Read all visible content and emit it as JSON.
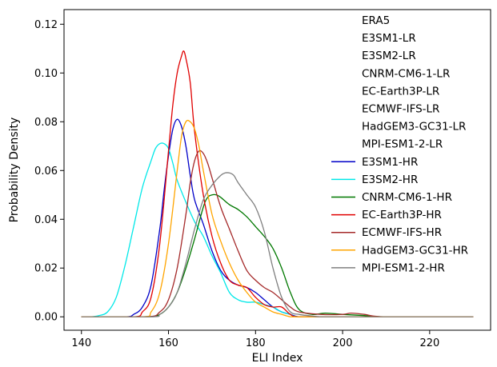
{
  "chart_data": {
    "type": "line",
    "title": "",
    "xlabel": "ELI Index",
    "ylabel": "Probability Density",
    "xlim": [
      136,
      234
    ],
    "ylim": [
      -0.0055,
      0.126
    ],
    "xticks": [
      140,
      160,
      180,
      200,
      220
    ],
    "yticks": [
      0.0,
      0.02,
      0.04,
      0.06,
      0.08,
      0.1,
      0.12
    ],
    "ytick_labels": [
      "0.00",
      "0.02",
      "0.04",
      "0.06",
      "0.08",
      "0.10",
      "0.12"
    ],
    "grid": false,
    "legend_position": "upper right",
    "series": [
      {
        "name": "ERA5",
        "color": null,
        "x": [],
        "y": []
      },
      {
        "name": "E3SM1-LR",
        "color": null,
        "x": [],
        "y": []
      },
      {
        "name": "E3SM2-LR",
        "color": null,
        "x": [],
        "y": []
      },
      {
        "name": "CNRM-CM6-1-LR",
        "color": null,
        "x": [],
        "y": []
      },
      {
        "name": "EC-Earth3P-LR",
        "color": null,
        "x": [],
        "y": []
      },
      {
        "name": "ECMWF-IFS-LR",
        "color": null,
        "x": [],
        "y": []
      },
      {
        "name": "HadGEM3-GC31-LR",
        "color": null,
        "x": [],
        "y": []
      },
      {
        "name": "MPI-ESM1-2-LR",
        "color": null,
        "x": [],
        "y": []
      },
      {
        "name": "E3SM1-HR",
        "color": "#0000c8",
        "x": [
          140,
          150,
          152,
          154,
          156,
          158,
          159,
          160,
          161,
          162,
          163,
          164,
          165,
          166,
          168,
          170,
          172,
          174,
          176,
          178,
          180,
          182,
          184,
          186,
          188,
          190,
          195,
          200,
          210,
          220,
          230
        ],
        "y": [
          0,
          0,
          0.001,
          0.004,
          0.013,
          0.036,
          0.052,
          0.066,
          0.077,
          0.081,
          0.078,
          0.07,
          0.058,
          0.048,
          0.038,
          0.027,
          0.019,
          0.015,
          0.013,
          0.012,
          0.01,
          0.007,
          0.004,
          0.002,
          0.001,
          0,
          0,
          0,
          0,
          0,
          0
        ]
      },
      {
        "name": "E3SM2-HR",
        "color": "#00e8e8",
        "x": [
          140,
          142,
          144,
          146,
          148,
          150,
          152,
          154,
          156,
          157,
          158,
          159,
          160,
          161,
          162,
          164,
          166,
          168,
          170,
          172,
          174,
          176,
          178,
          180,
          182,
          184,
          186,
          188,
          190,
          200,
          210,
          220,
          230
        ],
        "y": [
          0,
          0,
          0.0005,
          0.002,
          0.008,
          0.021,
          0.037,
          0.053,
          0.064,
          0.069,
          0.071,
          0.071,
          0.069,
          0.063,
          0.056,
          0.047,
          0.039,
          0.033,
          0.025,
          0.018,
          0.01,
          0.007,
          0.006,
          0.006,
          0.005,
          0.004,
          0.002,
          0.001,
          0,
          0,
          0,
          0,
          0
        ]
      },
      {
        "name": "CNRM-CM6-1-HR",
        "color": "#007800",
        "x": [
          140,
          155,
          158,
          160,
          162,
          164,
          166,
          168,
          169,
          170,
          171,
          172,
          174,
          176,
          178,
          180,
          182,
          184,
          186,
          188,
          190,
          193,
          196,
          200,
          205,
          210,
          230
        ],
        "y": [
          0,
          0,
          0.001,
          0.004,
          0.01,
          0.02,
          0.032,
          0.045,
          0.049,
          0.05,
          0.05,
          0.049,
          0.046,
          0.044,
          0.041,
          0.037,
          0.033,
          0.028,
          0.02,
          0.01,
          0.003,
          0.001,
          0.0015,
          0.001,
          0.0005,
          0,
          0
        ]
      },
      {
        "name": "EC-Earth3P-HR",
        "color": "#e00000",
        "x": [
          140,
          152,
          154,
          156,
          158,
          160,
          161,
          162,
          163,
          163.5,
          164,
          165,
          166,
          168,
          170,
          172,
          174,
          176,
          178,
          180,
          182,
          184,
          186,
          188,
          190,
          200,
          210,
          230
        ],
        "y": [
          0,
          0,
          0.002,
          0.008,
          0.03,
          0.068,
          0.087,
          0.1,
          0.107,
          0.109,
          0.106,
          0.096,
          0.076,
          0.05,
          0.033,
          0.022,
          0.015,
          0.013,
          0.012,
          0.008,
          0.005,
          0.004,
          0.004,
          0.001,
          0,
          0,
          0,
          0
        ]
      },
      {
        "name": "ECMWF-IFS-HR",
        "color": "#a52a2a",
        "x": [
          140,
          155,
          158,
          160,
          162,
          164,
          165,
          166,
          167,
          168,
          169,
          170,
          172,
          174,
          176,
          178,
          180,
          182,
          184,
          186,
          188,
          190,
          195,
          200,
          202,
          205,
          210,
          230
        ],
        "y": [
          0,
          0,
          0.002,
          0.007,
          0.02,
          0.042,
          0.055,
          0.064,
          0.068,
          0.067,
          0.063,
          0.057,
          0.045,
          0.036,
          0.027,
          0.019,
          0.015,
          0.012,
          0.01,
          0.007,
          0.004,
          0.002,
          0.001,
          0.001,
          0.0015,
          0.001,
          0,
          0
        ]
      },
      {
        "name": "HadGEM3-GC31-HR",
        "color": "#ffa500",
        "x": [
          140,
          154,
          156,
          158,
          160,
          162,
          163,
          164,
          165,
          166,
          167,
          168,
          170,
          172,
          174,
          176,
          178,
          180,
          182,
          184,
          186,
          188,
          190,
          200,
          210,
          230
        ],
        "y": [
          0,
          0,
          0.002,
          0.01,
          0.03,
          0.06,
          0.074,
          0.08,
          0.08,
          0.077,
          0.07,
          0.06,
          0.042,
          0.031,
          0.022,
          0.015,
          0.01,
          0.006,
          0.004,
          0.002,
          0.001,
          0,
          0,
          0,
          0,
          0
        ]
      },
      {
        "name": "MPI-ESM1-2-HR",
        "color": "#808080",
        "x": [
          140,
          156,
          158,
          160,
          162,
          164,
          166,
          168,
          170,
          172,
          173,
          174,
          175,
          176,
          178,
          180,
          182,
          184,
          186,
          188,
          190,
          192,
          195,
          200,
          230
        ],
        "y": [
          0,
          0,
          0.001,
          0.004,
          0.01,
          0.022,
          0.036,
          0.048,
          0.054,
          0.058,
          0.059,
          0.059,
          0.058,
          0.055,
          0.05,
          0.045,
          0.035,
          0.02,
          0.008,
          0.002,
          0.001,
          0.0005,
          0,
          0,
          0
        ]
      }
    ]
  }
}
